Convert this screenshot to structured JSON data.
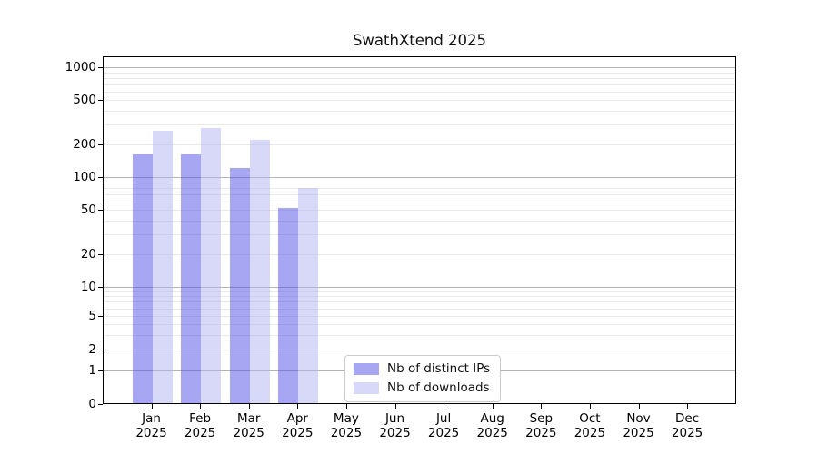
{
  "chart_data": {
    "type": "bar",
    "title": "SwathXtend 2025",
    "categories": [
      {
        "month": "Jan",
        "year": "2025"
      },
      {
        "month": "Feb",
        "year": "2025"
      },
      {
        "month": "Mar",
        "year": "2025"
      },
      {
        "month": "Apr",
        "year": "2025"
      },
      {
        "month": "May",
        "year": "2025"
      },
      {
        "month": "Jun",
        "year": "2025"
      },
      {
        "month": "Jul",
        "year": "2025"
      },
      {
        "month": "Aug",
        "year": "2025"
      },
      {
        "month": "Sep",
        "year": "2025"
      },
      {
        "month": "Oct",
        "year": "2025"
      },
      {
        "month": "Nov",
        "year": "2025"
      },
      {
        "month": "Dec",
        "year": "2025"
      }
    ],
    "series": [
      {
        "name": "Nb of distinct IPs",
        "color": "#a6a6f3",
        "fill": "rgba(77,77,231,0.5)",
        "values": [
          160,
          160,
          120,
          52,
          0,
          0,
          0,
          0,
          0,
          0,
          0,
          0
        ]
      },
      {
        "name": "Nb of downloads",
        "color": "#d8d8f8",
        "fill": "rgba(177,177,241,0.5)",
        "values": [
          265,
          280,
          220,
          80,
          0,
          0,
          0,
          0,
          0,
          0,
          0,
          0
        ]
      }
    ],
    "y_ticks": [
      0,
      1,
      2,
      5,
      10,
      20,
      50,
      100,
      200,
      500,
      1000
    ],
    "y_scale": "symlog (linear 0-1, logarithmic above 1)",
    "ylim": [
      0,
      1250
    ],
    "xlabel": "",
    "ylabel": "",
    "grid": "horizontal: major lines at 1,10,100,1000; faint minor lines at 2-9 per decade",
    "legend_position": "inside plot, bottom center-right"
  },
  "colors": {
    "grid_major": "#b2b2b2",
    "grid_minor": "#e9e9e9",
    "spine": "#000000",
    "background": "#ffffff"
  }
}
